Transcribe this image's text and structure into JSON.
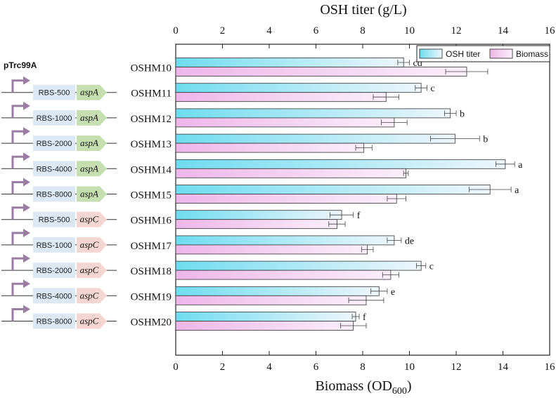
{
  "chart_data": {
    "type": "bar",
    "orientation": "horizontal",
    "categories": [
      "OSHM10",
      "OSHM11",
      "OSHM12",
      "OSHM13",
      "OSHM14",
      "OSHM15",
      "OSHM16",
      "OSHM17",
      "OSHM18",
      "OSHM19",
      "OSHM20"
    ],
    "series": [
      {
        "name": "OSH titer",
        "axis": "top",
        "values": [
          9.75,
          10.5,
          11.75,
          11.95,
          14.1,
          13.45,
          7.1,
          9.35,
          10.5,
          8.7,
          7.7
        ],
        "errors": [
          0.25,
          0.25,
          0.25,
          1.05,
          0.4,
          0.9,
          0.5,
          0.3,
          0.2,
          0.35,
          0.15
        ],
        "significance": [
          "cd",
          "c",
          "b",
          "b",
          "a",
          "a",
          "f",
          "de",
          "c",
          "e",
          "f"
        ],
        "colors": [
          "#6fdcf0",
          "#eef6fc"
        ]
      },
      {
        "name": "Biomass",
        "axis": "bottom",
        "values": [
          12.45,
          9.0,
          9.35,
          8.05,
          9.85,
          9.45,
          6.9,
          8.2,
          9.2,
          8.15,
          7.6
        ],
        "errors": [
          0.9,
          0.55,
          0.55,
          0.35,
          0.1,
          0.4,
          0.35,
          0.25,
          0.35,
          0.75,
          0.55
        ],
        "colors": [
          "#eeb6ea",
          "#fbeffa"
        ]
      }
    ],
    "top_axis": {
      "label": "OSH titer (g/L)",
      "range": [
        0,
        16
      ],
      "ticks": [
        0,
        2,
        4,
        6,
        8,
        10,
        12,
        14,
        16
      ]
    },
    "bottom_axis": {
      "label_main": "Biomass (OD",
      "label_sub": "600",
      "label_end": ")",
      "range": [
        0,
        16
      ],
      "ticks": [
        0,
        2,
        4,
        6,
        8,
        10,
        12,
        14,
        16
      ]
    },
    "legend": {
      "placement": "top-right",
      "entries": [
        "OSH titer",
        "Biomass"
      ]
    },
    "grid": false
  },
  "construct_panel": {
    "plasmid": "pTrc99A",
    "constructs": [
      {
        "rbs": "RBS-500",
        "gene": "aspA",
        "gene_color": "#c5dfb0"
      },
      {
        "rbs": "RBS-1000",
        "gene": "aspA",
        "gene_color": "#c5dfb0"
      },
      {
        "rbs": "RBS-2000",
        "gene": "aspA",
        "gene_color": "#c5dfb0"
      },
      {
        "rbs": "RBS-4000",
        "gene": "aspA",
        "gene_color": "#c5dfb0"
      },
      {
        "rbs": "RBS-8000",
        "gene": "aspA",
        "gene_color": "#c5dfb0"
      },
      {
        "rbs": "RBS-500",
        "gene": "aspC",
        "gene_color": "#f5d6d2"
      },
      {
        "rbs": "RBS-1000",
        "gene": "aspC",
        "gene_color": "#f5d6d2"
      },
      {
        "rbs": "RBS-2000",
        "gene": "aspC",
        "gene_color": "#f5d6d2"
      },
      {
        "rbs": "RBS-4000",
        "gene": "aspC",
        "gene_color": "#f5d6d2"
      },
      {
        "rbs": "RBS-8000",
        "gene": "aspC",
        "gene_color": "#f5d6d2"
      }
    ],
    "rbs_color": "#dce9f5",
    "promoter_color": "#9b7da3"
  }
}
